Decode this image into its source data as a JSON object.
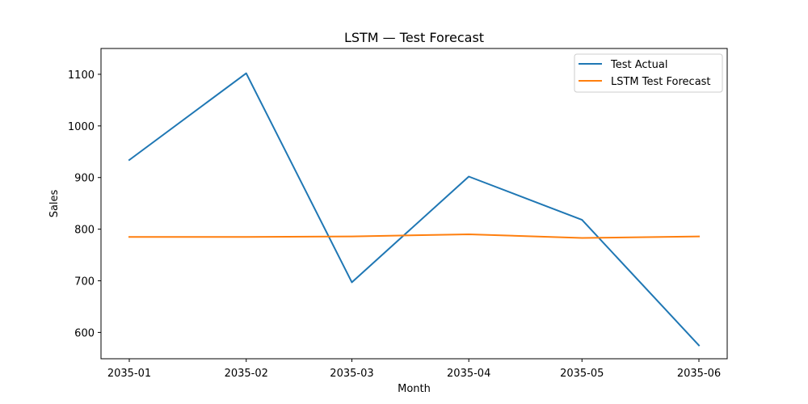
{
  "chart_data": {
    "type": "line",
    "title": "LSTM — Test Forecast",
    "xlabel": "Month",
    "ylabel": "Sales",
    "categories": [
      "2035-01",
      "2035-02",
      "2035-03",
      "2035-04",
      "2035-05",
      "2035-06"
    ],
    "x_dates": [
      "2035-01-01",
      "2035-02-01",
      "2035-03-01",
      "2035-04-01",
      "2035-05-01",
      "2035-06-01"
    ],
    "yticks": [
      600,
      700,
      800,
      900,
      1000,
      1100
    ],
    "ylim": [
      549,
      1150
    ],
    "grid": false,
    "legend_position": "top-right",
    "series": [
      {
        "name": "Test Actual",
        "color": "#1f77b4",
        "values": [
          934,
          1102,
          697,
          902,
          818,
          575
        ]
      },
      {
        "name": "LSTM Test Forecast",
        "color": "#ff7f0e",
        "values": [
          785,
          785,
          786,
          790,
          783,
          786
        ]
      }
    ]
  }
}
